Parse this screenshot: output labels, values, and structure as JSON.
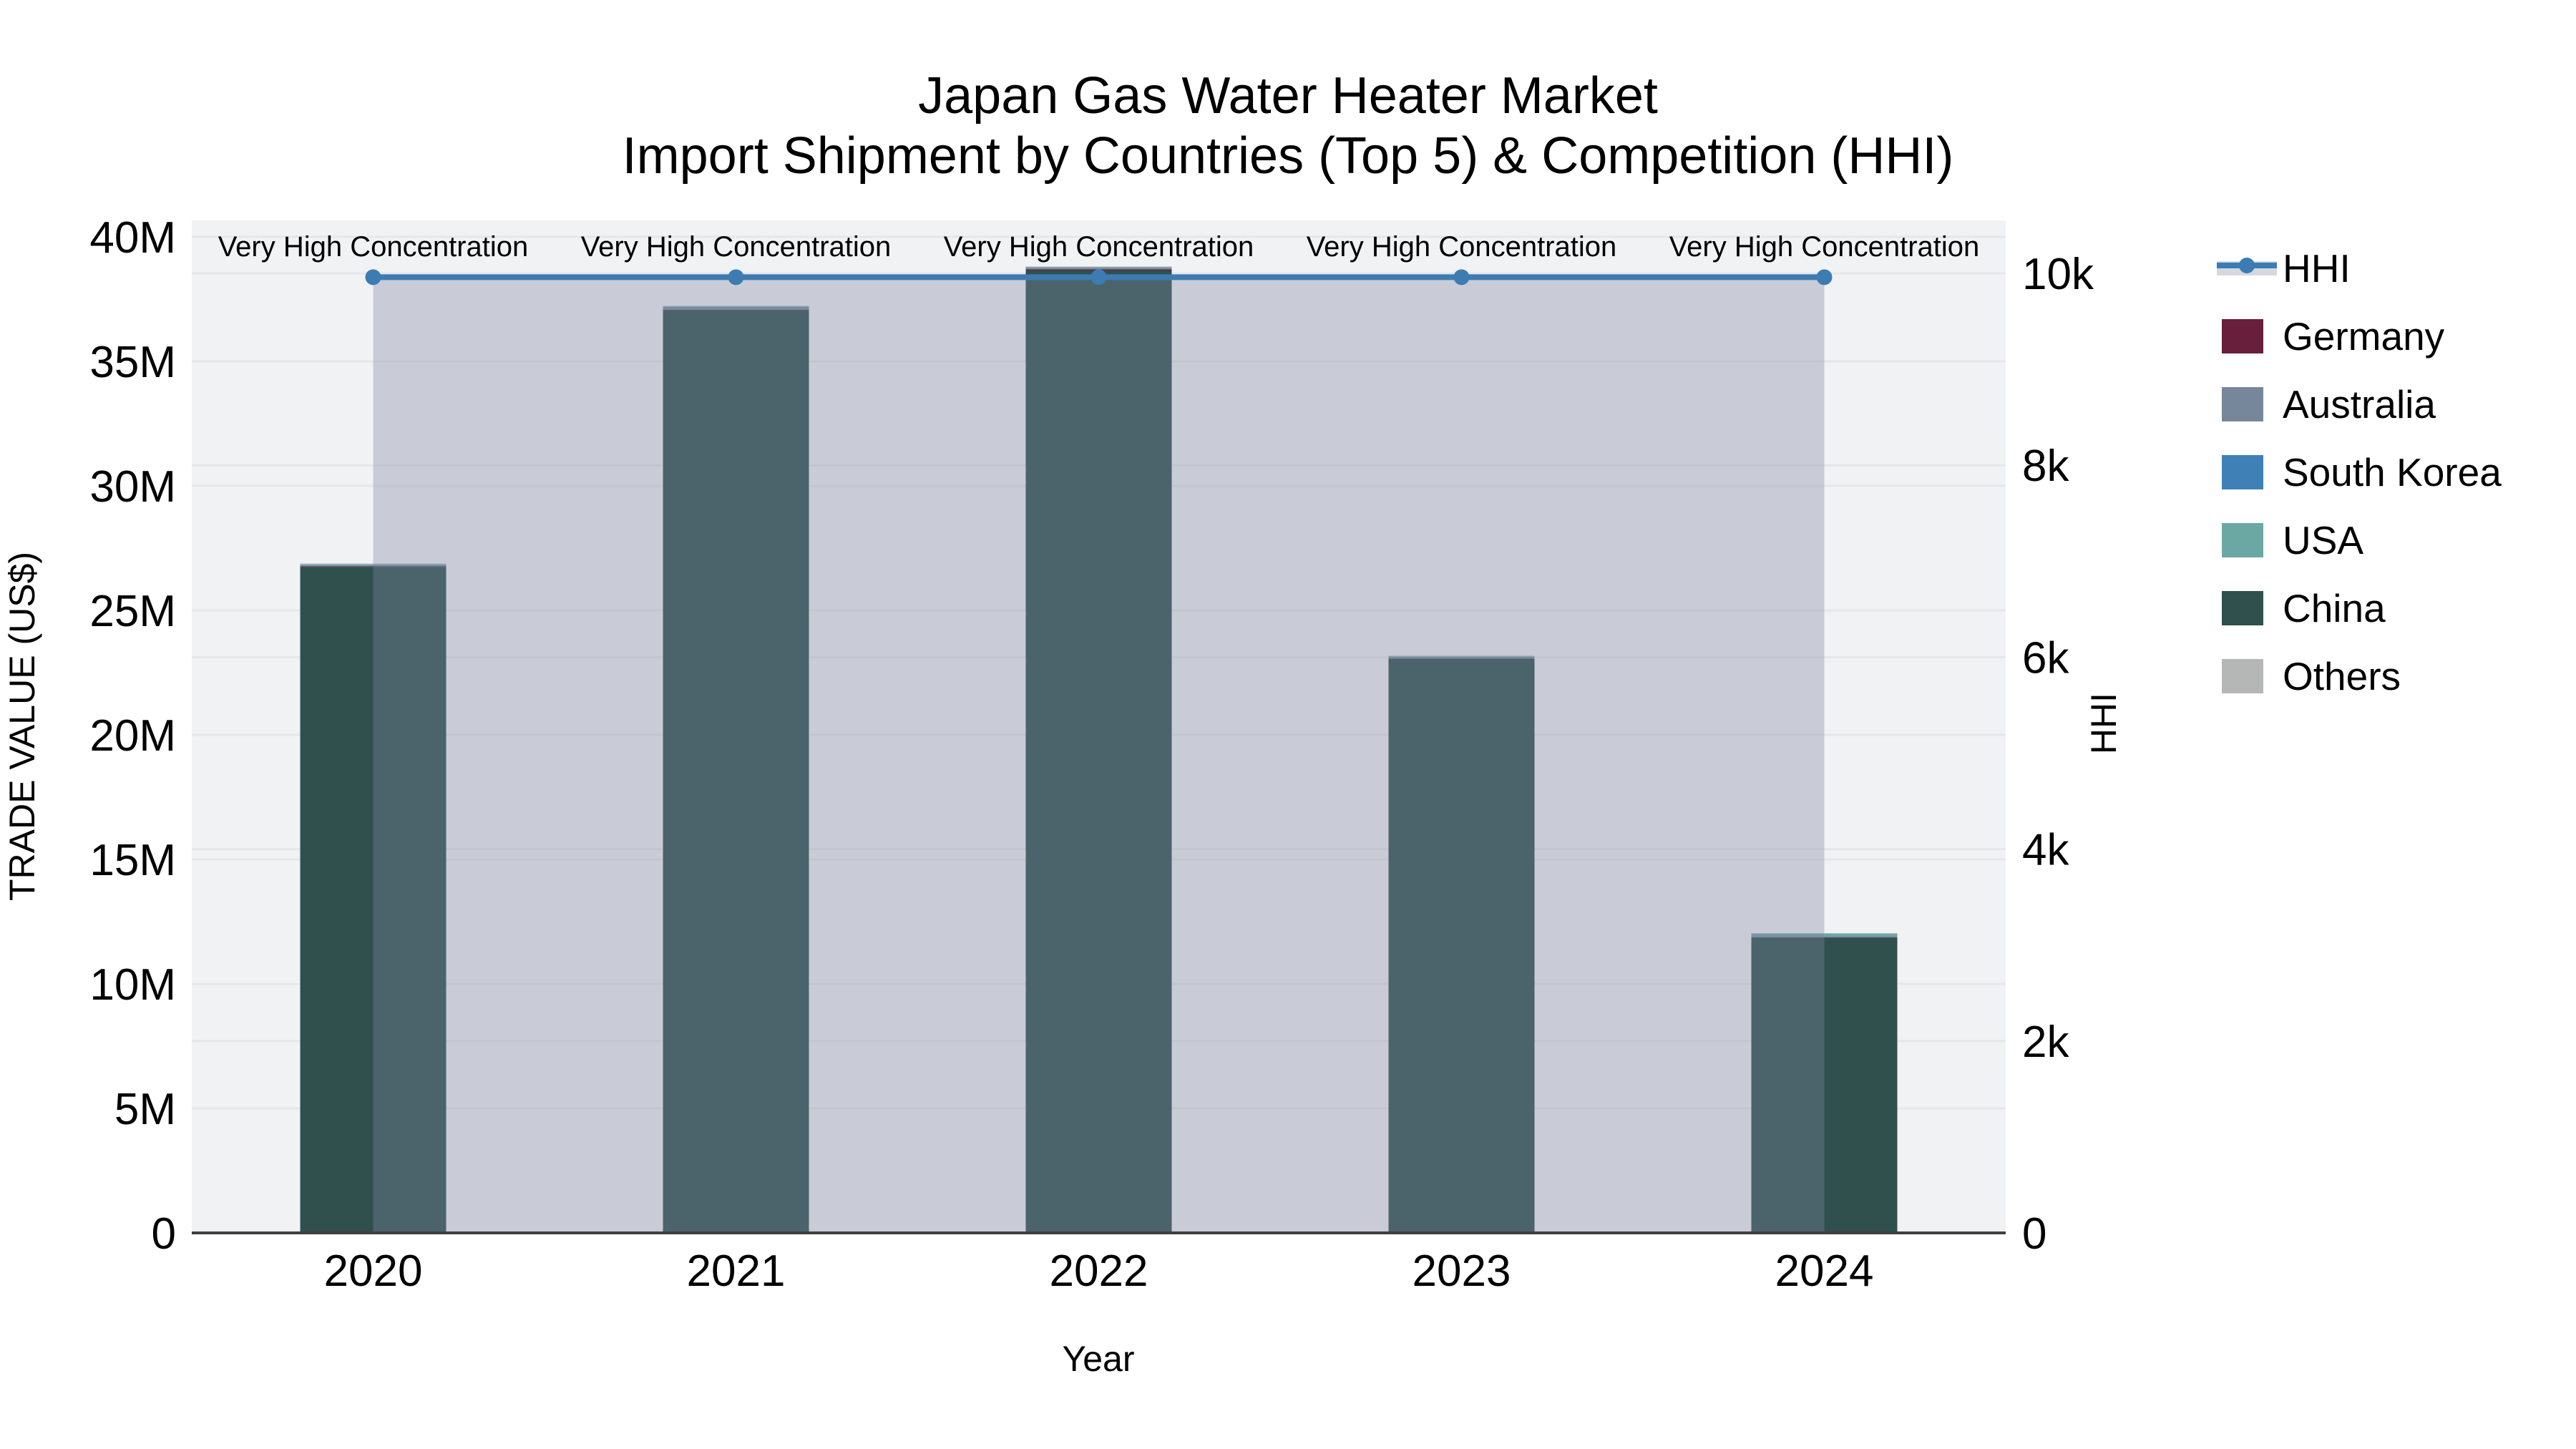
{
  "chart_data": {
    "type": "combo: stacked-bar + line",
    "title": "Japan Gas Water Heater Market",
    "subtitle": "Import Shipment by Countries (Top 5) & Competition (HHI)",
    "xlabel": "Year",
    "ylabel_left": "TRADE VALUE (US$)",
    "ylabel_right": "HHI",
    "categories": [
      "2020",
      "2021",
      "2022",
      "2023",
      "2024"
    ],
    "left_axis": {
      "min": 0,
      "max": 40700000,
      "grid": true,
      "ticks": [
        {
          "value": 0,
          "label": "0"
        },
        {
          "value": 5000000,
          "label": "5M"
        },
        {
          "value": 10000000,
          "label": "10M"
        },
        {
          "value": 15000000,
          "label": "15M"
        },
        {
          "value": 20000000,
          "label": "20M"
        },
        {
          "value": 25000000,
          "label": "25M"
        },
        {
          "value": 30000000,
          "label": "30M"
        },
        {
          "value": 35000000,
          "label": "35M"
        },
        {
          "value": 40000000,
          "label": "40M"
        }
      ]
    },
    "right_axis": {
      "min": 0,
      "max": 10550,
      "grid": true,
      "ticks": [
        {
          "value": 0,
          "label": "0"
        },
        {
          "value": 2000,
          "label": "2k"
        },
        {
          "value": 4000,
          "label": "4k"
        },
        {
          "value": 6000,
          "label": "6k"
        },
        {
          "value": 8000,
          "label": "8k"
        },
        {
          "value": 10000,
          "label": "10k"
        }
      ]
    },
    "bar_series": [
      {
        "name": "China",
        "color": "#30504D",
        "values": [
          26750000,
          37050000,
          38650000,
          23050000,
          11850000
        ]
      },
      {
        "name": "Germany",
        "color": "#671F3B",
        "values": [
          20000,
          20000,
          50000,
          20000,
          20000
        ]
      },
      {
        "name": "Australia",
        "color": "#76879B",
        "values": [
          30000,
          80000,
          30000,
          30000,
          20000
        ]
      },
      {
        "name": "South Korea",
        "color": "#3F80B6",
        "values": [
          20000,
          20000,
          20000,
          20000,
          20000
        ]
      },
      {
        "name": "USA",
        "color": "#6BA8A3",
        "values": [
          30000,
          30000,
          30000,
          30000,
          100000
        ]
      },
      {
        "name": "Others",
        "color": "#B5B7B6",
        "values": [
          30000,
          30000,
          30000,
          30000,
          30000
        ]
      }
    ],
    "line_series": {
      "name": "HHI",
      "color": "#3C7CB3",
      "values": [
        9960,
        9960,
        9960,
        9960,
        9960
      ],
      "fill_to_zero": true,
      "fill_color": "rgba(127,134,161,0.35)"
    },
    "annotations": [
      "Very High Concentration",
      "Very High Concentration",
      "Very High Concentration",
      "Very High Concentration",
      "Very High Concentration"
    ],
    "legend": {
      "items": [
        {
          "label": "HHI",
          "type": "line",
          "color": "#3C7CB3",
          "band_color": "#D5D8DD"
        },
        {
          "label": "Germany",
          "type": "swatch",
          "color": "#671F3B"
        },
        {
          "label": "Australia",
          "type": "swatch",
          "color": "#76879B"
        },
        {
          "label": "South Korea",
          "type": "swatch",
          "color": "#3F80B6"
        },
        {
          "label": "USA",
          "type": "swatch",
          "color": "#6BA8A3"
        },
        {
          "label": "China",
          "type": "swatch",
          "color": "#30504D"
        },
        {
          "label": "Others",
          "type": "swatch",
          "color": "#B5B7B6"
        }
      ]
    },
    "style": {
      "plot_bg": "#F1F2F3",
      "grid_color": "#E6E7E9",
      "axisline_color": "#3F3F3F"
    }
  }
}
